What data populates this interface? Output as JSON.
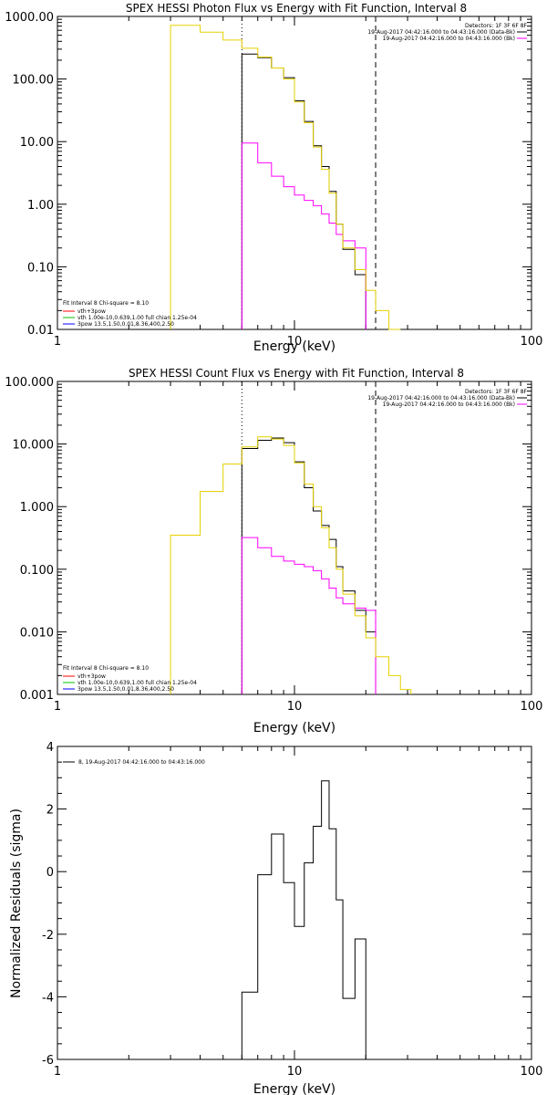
{
  "colors": {
    "data": "#000000",
    "bkg": "#ff00ff",
    "total": "#e6d000",
    "vth": "#ff0000",
    "thick": "#00c000",
    "hline": "#0000ff"
  },
  "chart_data": [
    {
      "type": "line",
      "scale": "log-log",
      "title": "SPEX HESSI Photon Flux vs Energy with Fit Function, Interval 8",
      "xlabel": "Energy (keV)",
      "ylabel": "",
      "xlim": [
        1,
        100
      ],
      "ylim": [
        0.01,
        1000
      ],
      "xticks": [
        {
          "v": 1,
          "label": "1"
        },
        {
          "v": 10,
          "label": "10"
        },
        {
          "v": 100,
          "label": "100"
        }
      ],
      "yticks": [
        {
          "v": 0.01,
          "label": "0.01"
        },
        {
          "v": 0.1,
          "label": "0.10"
        },
        {
          "v": 1,
          "label": "1.00"
        },
        {
          "v": 10,
          "label": "10.00"
        },
        {
          "v": 100,
          "label": "100.00"
        },
        {
          "v": 1000,
          "label": "1000.00"
        }
      ],
      "vlines": [
        {
          "x": 6.0,
          "style": "dotted"
        },
        {
          "x": 22.0,
          "style": "dashed"
        }
      ],
      "legend_top": [
        "Detectors: 1F 3F 6F 8F",
        "19-Aug-2017 04:42:16.000 to 04:43:16.000 (Data-Bk)",
        "19-Aug-2017 04:42:16.000 to 04:43:16.000 (Bk)"
      ],
      "legend_bottom": [
        "Fit Interval 8   Chi-square = 8.10",
        "vth+3pow",
        "vth 1.00e-10,0.639,1.00  full chian 1.25e-04",
        "3pow 13.5,1.50,0.01,8.36,400,2.50"
      ],
      "edges": [
        3.0,
        4.0,
        5.0,
        6.0,
        7.0,
        8.0,
        9.0,
        10.0,
        11.0,
        12.0,
        13.0,
        14.0,
        15.0,
        16.0,
        18.0,
        20.0,
        22.0,
        25.0,
        28.0
      ],
      "series": [
        {
          "name": "Data-Bk",
          "role": "data",
          "x0": 6.0,
          "values": [
            250,
            220,
            150,
            105,
            45,
            21,
            8.6,
            4.0,
            1.6,
            0.48,
            0.19,
            0.075
          ]
        },
        {
          "name": "Bk",
          "role": "bkg",
          "x0": 6.0,
          "values": [
            9.5,
            4.6,
            2.8,
            1.9,
            1.4,
            1.15,
            0.95,
            0.7,
            0.5,
            0.33,
            0.26,
            0.2
          ]
        },
        {
          "name": "vth+3pow",
          "role": "total",
          "x0": 3.0,
          "values": [
            720,
            560,
            420,
            310,
            225,
            150,
            100,
            43,
            20,
            8.2,
            3.6,
            1.5,
            0.48,
            0.2,
            0.09,
            0.042,
            0.02,
            0.009
          ]
        }
      ]
    },
    {
      "type": "line",
      "scale": "log-log",
      "title": "SPEX HESSI Count Flux vs Energy with Fit Function, Interval 8",
      "xlabel": "Energy (keV)",
      "ylabel": "",
      "xlim": [
        1,
        100
      ],
      "ylim": [
        0.001,
        100
      ],
      "xticks": [
        {
          "v": 1,
          "label": "1"
        },
        {
          "v": 10,
          "label": "10"
        },
        {
          "v": 100,
          "label": "100"
        }
      ],
      "yticks": [
        {
          "v": 0.001,
          "label": "0.001"
        },
        {
          "v": 0.01,
          "label": "0.010"
        },
        {
          "v": 0.1,
          "label": "0.100"
        },
        {
          "v": 1,
          "label": "1.000"
        },
        {
          "v": 10,
          "label": "10.000"
        },
        {
          "v": 100,
          "label": "100.000"
        }
      ],
      "vlines": [
        {
          "x": 6.0,
          "style": "dotted"
        },
        {
          "x": 22.0,
          "style": "dashed"
        }
      ],
      "legend_top": [
        "Detectors: 1F 3F 6F 8F",
        "19-Aug-2017 04:42:16.000 to 04:43:16.000 (Data-Bk)",
        "19-Aug-2017 04:42:16.000 to 04:43:16.000 (Bk)"
      ],
      "legend_bottom": [
        "Fit Interval 8   Chi-square = 8.10",
        "vth+3pow",
        "vth 1.00e-10,0.639,1.00  full chian 1.25e-04",
        "3pow 13.5,1.50,0.01,8.36,400,2.50"
      ],
      "edges": [
        3.0,
        4.0,
        5.0,
        6.0,
        7.0,
        8.0,
        9.0,
        10.0,
        11.0,
        12.0,
        13.0,
        14.0,
        15.0,
        16.0,
        18.0,
        20.0,
        22.0,
        25.0,
        28.0,
        31.0
      ],
      "series": [
        {
          "name": "Data-Bk",
          "role": "data",
          "x0": 6.0,
          "values": [
            8.5,
            11.5,
            12.5,
            10.5,
            5.2,
            2.0,
            0.85,
            0.5,
            0.3,
            0.11,
            0.045,
            0.022,
            0.01
          ]
        },
        {
          "name": "Bk",
          "role": "bkg",
          "x0": 6.0,
          "values": [
            0.32,
            0.22,
            0.16,
            0.135,
            0.12,
            0.11,
            0.095,
            0.07,
            0.05,
            0.035,
            0.028,
            0.024,
            0.022
          ]
        },
        {
          "name": "vth+3pow",
          "role": "total",
          "x0": 3.0,
          "values": [
            0.35,
            1.75,
            4.8,
            9.0,
            13.0,
            12.0,
            9.5,
            5.0,
            2.3,
            1.0,
            0.46,
            0.22,
            0.1,
            0.04,
            0.018,
            0.008,
            0.004,
            0.002,
            0.0012
          ]
        }
      ]
    },
    {
      "type": "line",
      "scale": "log-linear",
      "title": "",
      "xlabel": "Energy (keV)",
      "ylabel": "Normalized Residuals (sigma)",
      "xlim": [
        1,
        100
      ],
      "ylim": [
        -6,
        4
      ],
      "xticks": [
        {
          "v": 1,
          "label": "1"
        },
        {
          "v": 10,
          "label": "10"
        },
        {
          "v": 100,
          "label": "100"
        }
      ],
      "yticks": [
        {
          "v": -6,
          "label": "-6"
        },
        {
          "v": -4,
          "label": "-4"
        },
        {
          "v": -2,
          "label": "-2"
        },
        {
          "v": 0,
          "label": "0"
        },
        {
          "v": 2,
          "label": "2"
        },
        {
          "v": 4,
          "label": "4"
        }
      ],
      "vlines": [],
      "legend_top_left": "8, 19-Aug-2017 04:42:16.000 to 04:43:16.000",
      "edges": [
        6.0,
        7.0,
        8.0,
        9.0,
        10.0,
        11.0,
        12.0,
        13.0,
        14.0,
        15.0,
        16.0,
        18.0,
        20.0,
        22.0
      ],
      "series": [
        {
          "name": "residuals",
          "role": "data",
          "x0": 6.0,
          "values": [
            -3.85,
            -0.1,
            1.2,
            -0.35,
            -1.75,
            0.28,
            1.45,
            2.9,
            1.37,
            -0.9,
            -4.05,
            -2.15
          ]
        }
      ]
    }
  ]
}
